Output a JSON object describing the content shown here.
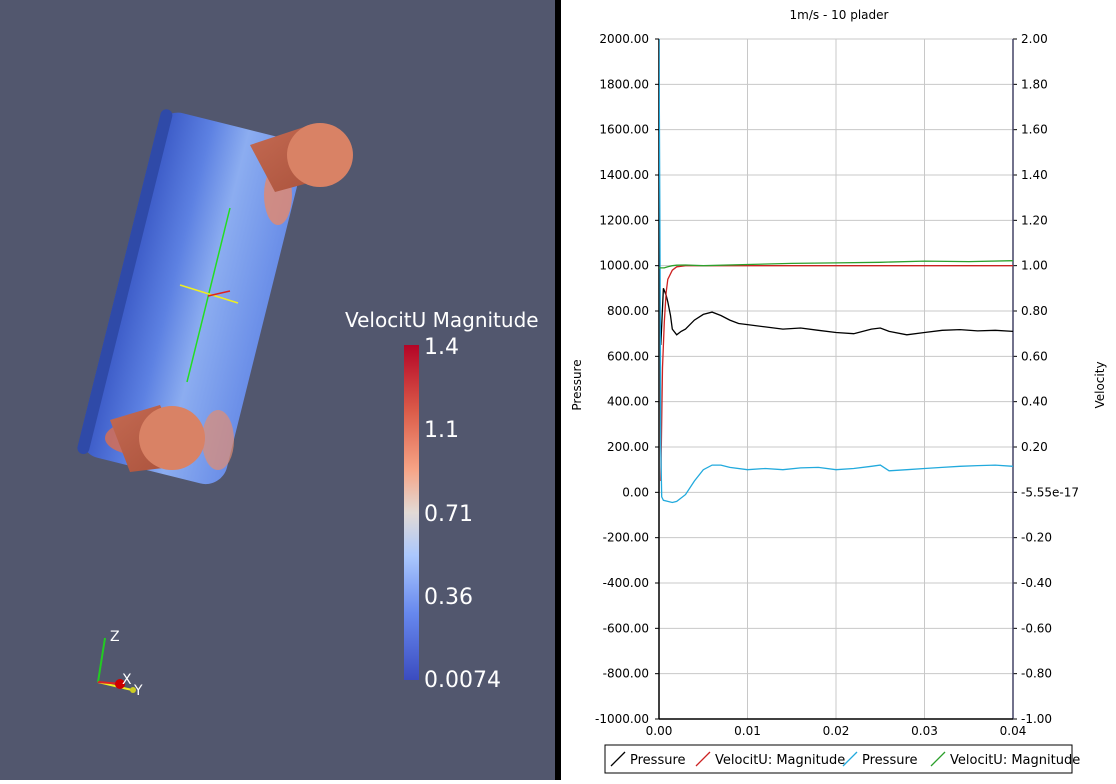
{
  "render_view": {
    "colorbar": {
      "title": "VelocitU Magnitude",
      "labels": [
        "1.4",
        "1.1",
        "0.71",
        "0.36",
        "0.0074"
      ]
    },
    "axes_triad": {
      "z": "Z",
      "x": "X",
      "y": "Y"
    }
  },
  "chart_data": {
    "type": "line",
    "title": "1m/s - 10 plader",
    "xlabel": "",
    "ylabel_left": "Pressure",
    "ylabel_right": "Velocity",
    "xlim": [
      0,
      0.04
    ],
    "ylim_left": [
      -1000,
      2000
    ],
    "ylim_right": [
      -1,
      2
    ],
    "x_ticks": [
      "0.00",
      "0.01",
      "0.02",
      "0.03",
      "0.04"
    ],
    "y_left_ticks": [
      "2000.00",
      "1800.00",
      "1600.00",
      "1400.00",
      "1200.00",
      "1000.00",
      "800.00",
      "600.00",
      "400.00",
      "200.00",
      "0.00",
      "-200.00",
      "-400.00",
      "-600.00",
      "-800.00",
      "-1000.00"
    ],
    "y_right_ticks": [
      "2.00",
      "1.80",
      "1.60",
      "1.40",
      "1.20",
      "1.00",
      "0.80",
      "0.60",
      "0.40",
      "0.20",
      "-5.55e-17",
      "-0.20",
      "-0.40",
      "-0.60",
      "-0.80",
      "-1.00"
    ],
    "grid": true,
    "legend_position": "bottom",
    "series": [
      {
        "name": "Pressure",
        "axis": "left",
        "color": "#000000",
        "x": [
          0.0002,
          0.0005,
          0.0008,
          0.001,
          0.0013,
          0.0015,
          0.002,
          0.0025,
          0.003,
          0.004,
          0.005,
          0.006,
          0.007,
          0.008,
          0.009,
          0.01,
          0.012,
          0.014,
          0.016,
          0.018,
          0.02,
          0.022,
          0.024,
          0.025,
          0.026,
          0.028,
          0.03,
          0.032,
          0.034,
          0.036,
          0.038,
          0.04
        ],
        "y": [
          650,
          900,
          870,
          840,
          780,
          720,
          695,
          710,
          720,
          760,
          785,
          795,
          780,
          760,
          745,
          740,
          730,
          720,
          725,
          715,
          705,
          700,
          720,
          725,
          710,
          695,
          705,
          715,
          718,
          712,
          715,
          710
        ]
      },
      {
        "name": "VelocitU: Magnitude",
        "axis": "right",
        "color": "#cc2222",
        "x": [
          0.0002,
          0.0004,
          0.0006,
          0.0008,
          0.001,
          0.0015,
          0.002,
          0.003,
          0.005,
          0.01,
          0.02,
          0.03,
          0.04
        ],
        "y": [
          0.05,
          0.55,
          0.75,
          0.88,
          0.94,
          0.98,
          0.995,
          1.0,
          1.0,
          1.0,
          1.0,
          1.0,
          1.0
        ]
      },
      {
        "name": "Pressure",
        "axis": "left",
        "color": "#22aadd",
        "x": [
          0.0,
          0.0001,
          0.0002,
          0.0003,
          0.0005,
          0.001,
          0.0015,
          0.002,
          0.003,
          0.004,
          0.005,
          0.006,
          0.007,
          0.008,
          0.01,
          0.012,
          0.014,
          0.016,
          0.018,
          0.02,
          0.022,
          0.024,
          0.025,
          0.026,
          0.028,
          0.03,
          0.032,
          0.034,
          0.036,
          0.038,
          0.04
        ],
        "y": [
          2000,
          1200,
          200,
          -20,
          -35,
          -40,
          -45,
          -40,
          -10,
          50,
          100,
          120,
          120,
          110,
          100,
          105,
          100,
          108,
          110,
          100,
          105,
          115,
          120,
          95,
          100,
          105,
          110,
          115,
          118,
          120,
          115
        ]
      },
      {
        "name": "VelocitU: Magnitude",
        "axis": "right",
        "color": "#2ca02c",
        "x": [
          0.0,
          0.0003,
          0.0006,
          0.001,
          0.0015,
          0.002,
          0.003,
          0.005,
          0.01,
          0.015,
          0.02,
          0.025,
          0.03,
          0.035,
          0.04
        ],
        "y": [
          0.99,
          0.99,
          0.99,
          0.995,
          1.0,
          1.002,
          1.003,
          1.0,
          1.005,
          1.01,
          1.012,
          1.015,
          1.02,
          1.018,
          1.022
        ]
      }
    ]
  }
}
